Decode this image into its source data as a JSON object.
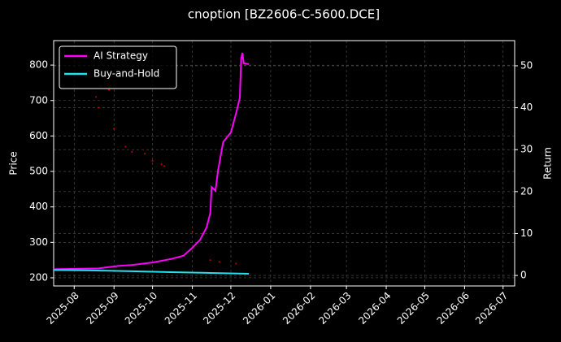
{
  "chart_data": {
    "type": "line",
    "title": "cnoption [BZ2606-C-5600.DCE]",
    "ylabel": "Price",
    "y2label": "Return",
    "xlim": [
      "2025-07-16",
      "2026-07-10"
    ],
    "xticks": [
      "2025-08",
      "2025-09",
      "2025-10",
      "2025-11",
      "2025-12",
      "2026-01",
      "2026-02",
      "2026-03",
      "2026-04",
      "2026-05",
      "2026-06",
      "2026-07"
    ],
    "ylim": [
      177,
      869
    ],
    "yticks": [
      200,
      300,
      400,
      500,
      600,
      700,
      800
    ],
    "y2lim": [
      -2.5,
      56
    ],
    "y2ticks": [
      0,
      10,
      20,
      30,
      40,
      50
    ],
    "grid": true,
    "legend": "upper left",
    "series": [
      {
        "name": "AI Strategy",
        "color": "#ff00ff",
        "axis": "y2",
        "x": [
          "2025-07-16",
          "2025-08-20",
          "2025-09-05",
          "2025-09-15",
          "2025-10-01",
          "2025-10-15",
          "2025-10-25",
          "2025-11-01",
          "2025-11-07",
          "2025-11-12",
          "2025-11-15",
          "2025-11-16",
          "2025-11-19",
          "2025-11-21",
          "2025-11-25",
          "2025-12-01",
          "2025-12-05",
          "2025-12-08",
          "2025-12-09",
          "2025-12-10",
          "2025-12-11",
          "2025-12-15"
        ],
        "values": [
          1.5,
          1.7,
          2.3,
          2.5,
          3.1,
          3.9,
          4.7,
          6.6,
          8.5,
          11.4,
          14.9,
          21.1,
          20.2,
          25,
          31.8,
          34.1,
          38.6,
          42.4,
          51.7,
          53.1,
          50.6,
          50.4
        ]
      },
      {
        "name": "Buy-and-Hold",
        "color": "#22e0ee",
        "axis": "y2",
        "x": [
          "2025-07-16",
          "2025-08-15",
          "2025-09-15",
          "2025-10-15",
          "2025-11-15",
          "2025-12-15"
        ],
        "values": [
          1.3,
          1.2,
          1.0,
          0.8,
          0.6,
          0.4
        ]
      },
      {
        "color": "#cc0000",
        "style": "dots",
        "x": [
          "2025-08-18",
          "2025-08-20",
          "2025-08-22",
          "2025-08-28",
          "2025-09-01",
          "2025-09-10",
          "2025-09-15",
          "2025-09-25",
          "2025-10-01",
          "2025-10-08",
          "2025-10-10",
          "2025-11-01",
          "2025-11-15",
          "2025-11-22",
          "2025-12-05"
        ],
        "values": [
          710,
          680,
          740,
          730,
          620,
          570,
          555,
          550,
          530,
          520,
          515,
          330,
          250,
          245,
          240
        ]
      }
    ]
  }
}
